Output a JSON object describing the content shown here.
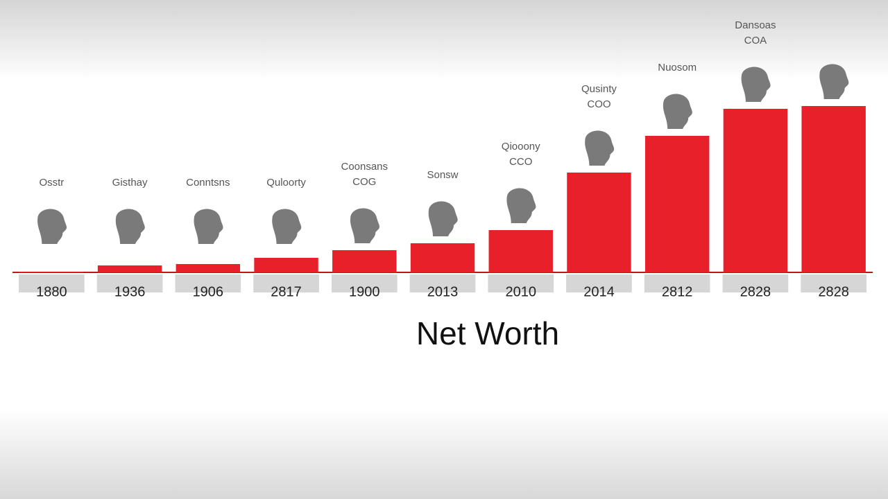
{
  "chart_data": {
    "type": "bar",
    "title": "Net Worth",
    "categories": [
      "1880",
      "1936",
      "1906",
      "2817",
      "1900",
      "2013",
      "2010",
      "2014",
      "2812",
      "2828",
      "2828"
    ],
    "values": [
      1,
      10,
      12,
      21,
      32,
      42,
      61,
      144,
      197,
      236,
      240
    ],
    "color": "#e8202a",
    "annotations": [
      [
        "Osstr"
      ],
      [
        "Gisthay"
      ],
      [
        "Conntsns"
      ],
      [
        "Quloorty"
      ],
      [
        "Coonsans",
        "COG"
      ],
      [
        "Sonsw"
      ],
      [
        "Qiooony",
        "CCO"
      ],
      [
        "Qusinty",
        "COO"
      ],
      [
        "Nuosom"
      ],
      [
        "Dansoas",
        "COA"
      ],
      []
    ]
  }
}
